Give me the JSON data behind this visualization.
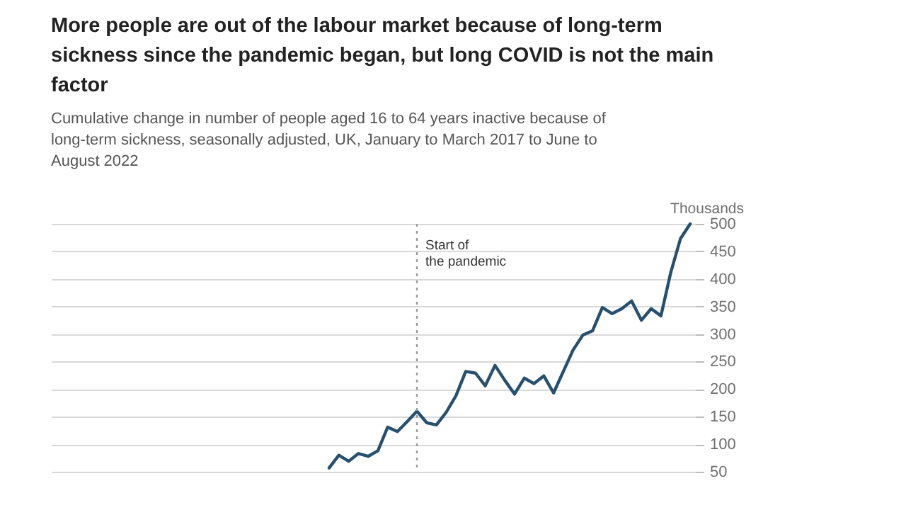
{
  "chart_data": {
    "type": "line",
    "title": "More people are out of the labour market because of long-term sickness since the pandemic began, but long COVID is not the main factor",
    "subtitle": "Cumulative change in number of people aged 16 to 64 years inactive because of long-term sickness, seasonally adjusted, UK, January to March 2017 to June to August 2022",
    "ylabel": "Thousands",
    "categories": [
      null,
      null,
      null,
      null,
      null,
      null,
      null,
      null,
      null,
      null,
      null,
      null,
      null,
      null,
      null,
      null,
      null,
      null,
      null,
      null,
      null,
      null,
      null,
      null,
      null,
      null,
      null,
      null,
      null,
      null,
      null,
      null,
      null,
      null,
      null,
      null,
      null,
      null,
      null,
      null,
      null,
      null,
      null,
      null,
      null,
      null,
      null,
      null,
      null,
      null,
      null,
      null,
      null,
      null,
      null,
      null,
      null,
      null,
      null,
      null,
      null,
      null,
      null,
      null,
      null,
      null
    ],
    "series": [
      {
        "color": "#27506f",
        "values": [
          null,
          null,
          null,
          null,
          null,
          null,
          null,
          null,
          null,
          null,
          null,
          null,
          null,
          null,
          null,
          null,
          null,
          null,
          null,
          null,
          null,
          null,
          null,
          null,
          null,
          null,
          null,
          null,
          57,
          80,
          69,
          83,
          78,
          88,
          131,
          123,
          141,
          160,
          139,
          135,
          158,
          188,
          232,
          229,
          206,
          243,
          216,
          191,
          220,
          210,
          224,
          193,
          232,
          271,
          298,
          306,
          348,
          337,
          346,
          360,
          325,
          346,
          333,
          411,
          473,
          500
        ]
      }
    ],
    "ylim": [
      50,
      500
    ],
    "yticks": [
      50,
      100,
      150,
      200,
      250,
      300,
      350,
      400,
      450,
      500
    ],
    "grid": "y",
    "tick_labels": "y",
    "line_style": "solid",
    "marker": "none",
    "annotations": [
      "Start of\nthe pandemic"
    ]
  }
}
